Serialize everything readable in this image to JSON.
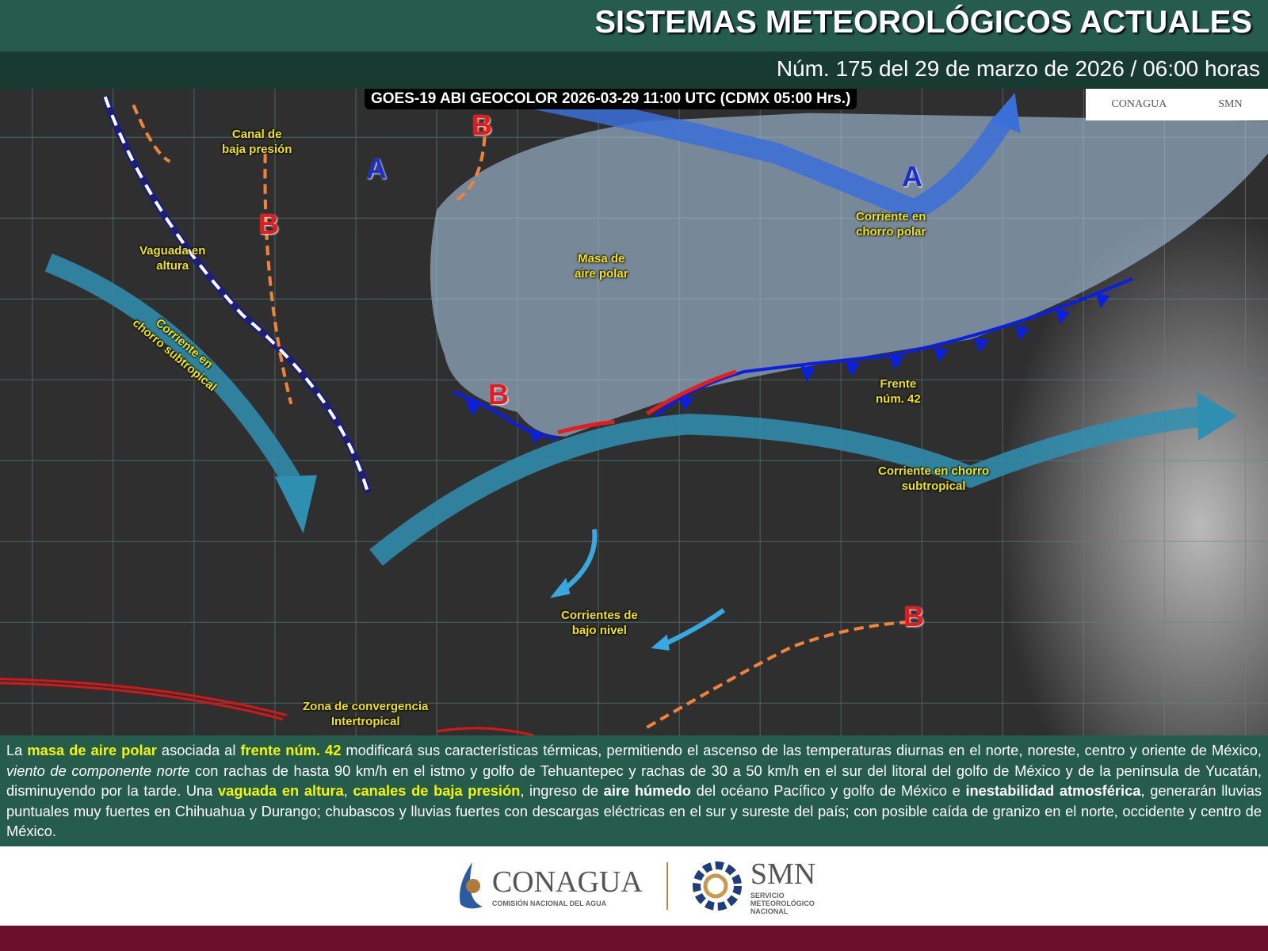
{
  "header": {
    "title": "SISTEMAS METEOROLÓGICOS ACTUALES",
    "subtitle": "Núm. 175 del 29 de marzo de 2026 / 06:00 horas"
  },
  "map": {
    "satellite_label": "GOES-19 ABI GEOCOLOR 2026-03-29 11:00 UTC (CDMX  05:00 Hrs.)",
    "small_logos": {
      "conagua": "CONAGUA",
      "smn": "SMN"
    },
    "pressure_centers": [
      {
        "letter": "A",
        "type": "high",
        "color": "#1a2fd0"
      },
      {
        "letter": "A",
        "type": "high",
        "color": "#1a2fd0"
      },
      {
        "letter": "B",
        "type": "low",
        "color": "#e8191c"
      },
      {
        "letter": "B",
        "type": "low",
        "color": "#e8191c"
      },
      {
        "letter": "B",
        "type": "low",
        "color": "#e8191c"
      },
      {
        "letter": "B",
        "type": "low",
        "color": "#e8191c"
      }
    ],
    "labels": {
      "canal": "Canal de\nbaja presión",
      "vaguada": "Vaguada en\naltura",
      "chorro_sub_w": "Corriente en\nchorro subtropical",
      "masa": "Masa de\naire polar",
      "chorro_polar": "Corriente en\nchorro polar",
      "frente": "Frente\nnúm. 42",
      "chorro_sub_e": "Corriente en chorro\nsubtropical",
      "bajo_nivel": "Corrientes de\nbajo nivel",
      "zci": "Zona de convergencia\nIntertropical"
    },
    "colors": {
      "label": "#f2e600",
      "jet_subtropical": "#2f8fb0",
      "jet_polar": "#3a6fd8",
      "cold_front": "#0a1fe0",
      "warm_front": "#e02020",
      "trough": "#1b1f7a",
      "low_channel": "#f0823a",
      "itcz": "#d01818",
      "polar_air": "#a9c4e0"
    }
  },
  "bulletin": {
    "p1": "La ",
    "b1": "masa de aire polar",
    "p2": " asociada al ",
    "b2": "frente núm. 42",
    "p3": " modificará sus características térmicas, permitiendo el ascenso de las temperaturas diurnas en el norte, noreste, centro y oriente de México, ",
    "i1": "viento de componente norte",
    "p4": " con rachas de hasta 90 km/h en el istmo y golfo de Tehuantepec y rachas de 30 a 50 km/h en el sur del litoral del golfo de México y de la península de Yucatán, disminuyendo por la tarde. Una ",
    "b3": "vaguada en altura",
    "p5": ", ",
    "b4": "canales de baja presión",
    "p6": ", ingreso de ",
    "b5": "aire húmedo",
    "p7": " del océano Pacífico y golfo de México e ",
    "b6": "inestabilidad atmosférica",
    "p8": ", generarán lluvias puntuales muy fuertes en Chihuahua y Durango; chubascos y lluvias fuertes con descargas eléctricas en el sur y sureste del país; con posible caída de granizo en el norte, occidente y centro de México."
  },
  "footer": {
    "conagua": "CONAGUA",
    "conagua_sub": "COMISIÓN NACIONAL DEL AGUA",
    "smn": "SMN",
    "smn_sub": "SERVICIO\nMETEOROLÓGICO\nNACIONAL"
  }
}
